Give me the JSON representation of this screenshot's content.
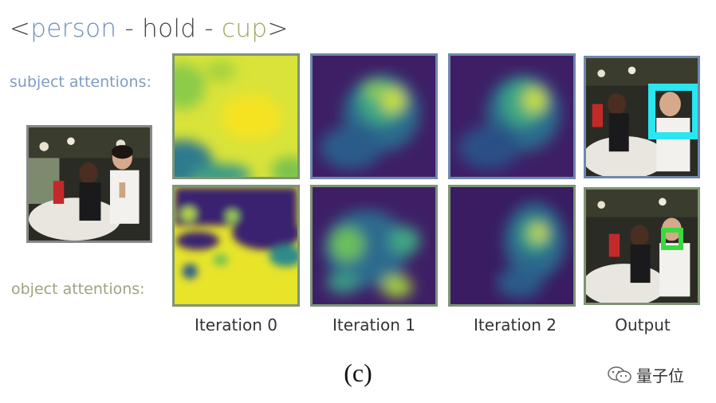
{
  "title": {
    "open": "<",
    "subject": "person",
    "sep1": " - ",
    "verb": "hold",
    "sep2": " - ",
    "object": "cup",
    "close": ">"
  },
  "row_labels": {
    "subject": "subject attentions:",
    "object": "object attentions:"
  },
  "columns": [
    "Iteration 0",
    "Iteration 1",
    "Iteration 2",
    "Output"
  ],
  "caption": "(c)",
  "watermark": {
    "icon": "wechat-icon",
    "text": "量子位"
  },
  "colors": {
    "viridis_dark": "#440154",
    "viridis_mid": "#21918c",
    "viridis_bright": "#fde725",
    "subject_box": "#29e6f0",
    "object_box": "#3ad93f"
  }
}
